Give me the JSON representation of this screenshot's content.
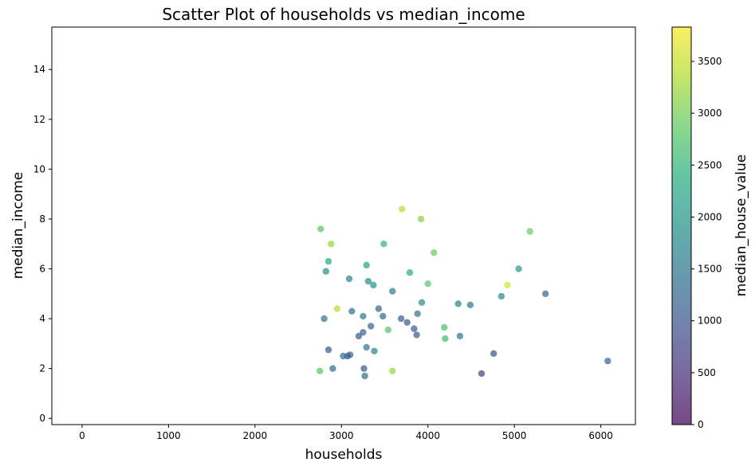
{
  "chart_data": {
    "type": "scatter",
    "title": "Scatter Plot of households vs median_income",
    "xlabel": "households",
    "ylabel": "median_income",
    "xlim": [
      -350,
      6400
    ],
    "ylim": [
      -0.25,
      15.7
    ],
    "xticks": [
      0,
      1000,
      2000,
      3000,
      4000,
      5000,
      6000
    ],
    "xtick_labels": [
      "0",
      "1000",
      "2000",
      "3000",
      "4000",
      "5000",
      "6000"
    ],
    "yticks": [
      0,
      2,
      4,
      6,
      8,
      10,
      12,
      14
    ],
    "ytick_labels": [
      "0",
      "2",
      "4",
      "6",
      "8",
      "10",
      "12",
      "14"
    ],
    "grid": false,
    "colormap": "viridis",
    "point_alpha": 0.7,
    "colorbar": {
      "label": "median_house_value",
      "range": [
        0,
        3830
      ],
      "ticks": [
        0,
        500,
        1000,
        1500,
        2000,
        2500,
        3000,
        3500
      ],
      "tick_labels": [
        "0",
        "500",
        "1000",
        "1500",
        "2000",
        "2500",
        "3000",
        "3500"
      ]
    },
    "points": [
      [
        6080,
        2.3,
        1100
      ],
      [
        5360,
        5.0,
        1200
      ],
      [
        5180,
        7.5,
        2900
      ],
      [
        5050,
        6.0,
        2000
      ],
      [
        4920,
        5.35,
        3600
      ],
      [
        4850,
        4.9,
        1800
      ],
      [
        4760,
        2.6,
        900
      ],
      [
        4620,
        1.8,
        700
      ],
      [
        4490,
        4.55,
        1500
      ],
      [
        4350,
        4.6,
        1700
      ],
      [
        4370,
        3.3,
        1500
      ],
      [
        4200,
        3.2,
        2600
      ],
      [
        4190,
        3.65,
        2700
      ],
      [
        4070,
        6.65,
        2900
      ],
      [
        4000,
        5.4,
        2800
      ],
      [
        3920,
        8.0,
        3100
      ],
      [
        3930,
        4.65,
        1800
      ],
      [
        3880,
        4.2,
        1400
      ],
      [
        3870,
        3.35,
        1000
      ],
      [
        3840,
        3.6,
        1000
      ],
      [
        3790,
        5.85,
        2300
      ],
      [
        3760,
        3.85,
        1000
      ],
      [
        3700,
        8.4,
        3400
      ],
      [
        3690,
        4.0,
        1100
      ],
      [
        3590,
        5.1,
        1600
      ],
      [
        3590,
        1.9,
        3200
      ],
      [
        3540,
        3.55,
        2800
      ],
      [
        3490,
        7.0,
        2500
      ],
      [
        3480,
        4.1,
        1300
      ],
      [
        3430,
        4.4,
        1200
      ],
      [
        3380,
        2.7,
        1700
      ],
      [
        3370,
        5.35,
        1900
      ],
      [
        3340,
        3.7,
        1200
      ],
      [
        3310,
        5.5,
        1800
      ],
      [
        3290,
        6.15,
        2200
      ],
      [
        3290,
        2.85,
        1500
      ],
      [
        3260,
        2.0,
        1000
      ],
      [
        3270,
        1.7,
        1300
      ],
      [
        3250,
        4.1,
        1600
      ],
      [
        3250,
        3.45,
        1100
      ],
      [
        3200,
        3.3,
        1000
      ],
      [
        3120,
        4.3,
        1400
      ],
      [
        3100,
        2.55,
        1200
      ],
      [
        3090,
        5.6,
        1700
      ],
      [
        3070,
        2.5,
        1000
      ],
      [
        3020,
        2.5,
        1300
      ],
      [
        2950,
        4.4,
        3400
      ],
      [
        2900,
        2.0,
        1300
      ],
      [
        2880,
        7.0,
        3200
      ],
      [
        2850,
        6.3,
        2300
      ],
      [
        2850,
        2.75,
        1000
      ],
      [
        2820,
        5.9,
        1800
      ],
      [
        2800,
        4.0,
        1400
      ],
      [
        2750,
        1.9,
        2800
      ],
      [
        2760,
        7.6,
        2800
      ]
    ]
  }
}
